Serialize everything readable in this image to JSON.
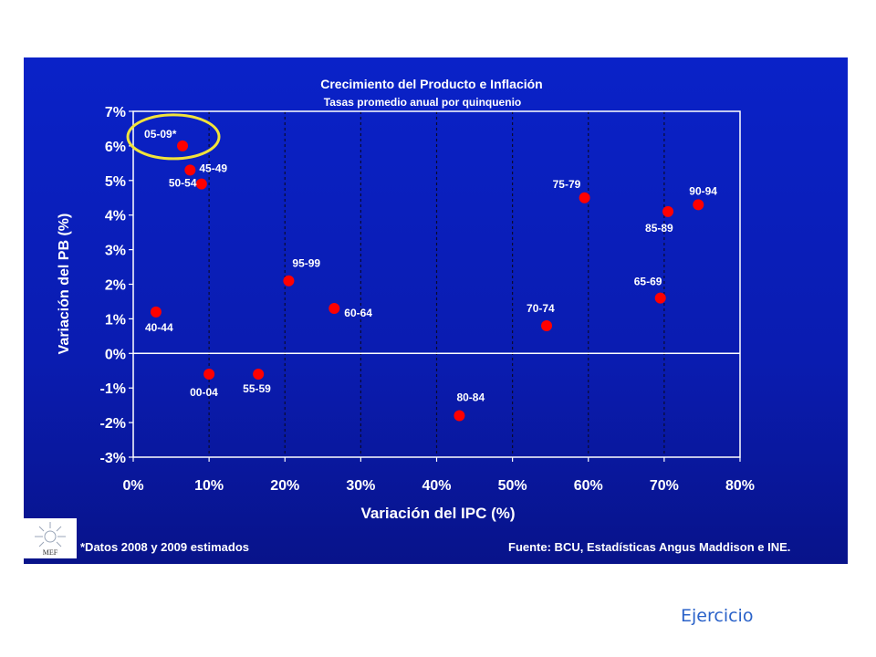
{
  "chart_data": {
    "type": "scatter",
    "title": "Crecimiento del Producto e Inflación",
    "subtitle": "Tasas promedio anual por quinquenio",
    "xlabel": "Variación del IPC (%)",
    "ylabel": "Variación del PB (%)",
    "xlim": [
      0,
      80
    ],
    "ylim": [
      -3,
      7
    ],
    "x_ticks": [
      "0%",
      "10%",
      "20%",
      "30%",
      "40%",
      "50%",
      "60%",
      "70%",
      "80%"
    ],
    "y_ticks": [
      "7%",
      "6%",
      "5%",
      "4%",
      "3%",
      "2%",
      "1%",
      "0%",
      "-1%",
      "-2%",
      "-3%"
    ],
    "grid": "vertical dashed at 10% intervals",
    "point_color": "#ff0000",
    "highlight_color": "#f2e33a",
    "points": [
      {
        "label": "05-09*",
        "x": 6.5,
        "y": 6.0,
        "highlight": true
      },
      {
        "label": "45-49",
        "x": 7.5,
        "y": 5.3
      },
      {
        "label": "50-54",
        "x": 9.0,
        "y": 4.9
      },
      {
        "label": "40-44",
        "x": 3.0,
        "y": 1.2
      },
      {
        "label": "00-04",
        "x": 10.0,
        "y": -0.6
      },
      {
        "label": "55-59",
        "x": 16.5,
        "y": -0.6
      },
      {
        "label": "95-99",
        "x": 20.5,
        "y": 2.1
      },
      {
        "label": "60-64",
        "x": 26.5,
        "y": 1.3
      },
      {
        "label": "80-84",
        "x": 43.0,
        "y": -1.8
      },
      {
        "label": "70-74",
        "x": 54.5,
        "y": 0.8
      },
      {
        "label": "75-79",
        "x": 59.5,
        "y": 4.5
      },
      {
        "label": "65-69",
        "x": 69.5,
        "y": 1.6
      },
      {
        "label": "85-89",
        "x": 70.5,
        "y": 4.1
      },
      {
        "label": "90-94",
        "x": 74.5,
        "y": 4.3
      }
    ]
  },
  "footer": {
    "note": "*Datos 2008 y 2009 estimados",
    "source": "Fuente: BCU, Estadísticas Angus Maddison e INE."
  },
  "logo": {
    "text": "MEF",
    "icon": "sun-logo-icon"
  },
  "link": {
    "label": "Ejercicio"
  }
}
